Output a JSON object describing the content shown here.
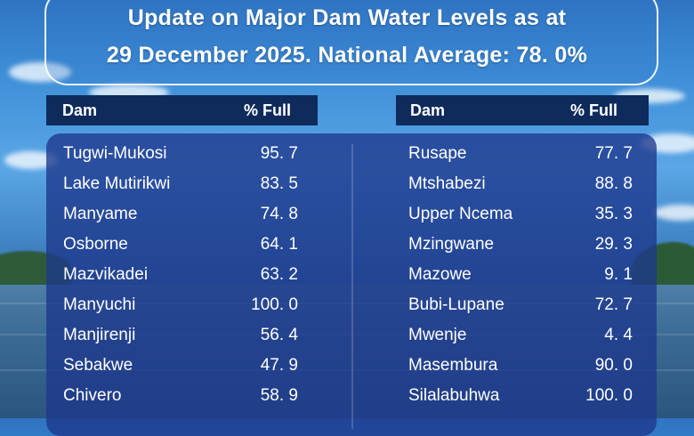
{
  "title": {
    "line1": "Update on Major Dam Water Levels as at",
    "line2": "29 December 2025. National Average: 78. 0%"
  },
  "table": {
    "col_dam": "Dam",
    "col_full": "% Full",
    "left": [
      {
        "dam": "Tugwi-Mukosi",
        "full": "95. 7"
      },
      {
        "dam": "Lake Mutirikwi",
        "full": "83. 5"
      },
      {
        "dam": "Manyame",
        "full": "74. 8"
      },
      {
        "dam": "Osborne",
        "full": "64. 1"
      },
      {
        "dam": "Mazvikadei",
        "full": "63. 2"
      },
      {
        "dam": "Manyuchi",
        "full": "100. 0"
      },
      {
        "dam": "Manjirenji",
        "full": "56. 4"
      },
      {
        "dam": "Sebakwe",
        "full": "47. 9"
      },
      {
        "dam": "Chivero",
        "full": "58. 9"
      }
    ],
    "right": [
      {
        "dam": "Rusape",
        "full": "77. 7"
      },
      {
        "dam": "Mtshabezi",
        "full": "88. 8"
      },
      {
        "dam": "Upper Ncema",
        "full": "35. 3"
      },
      {
        "dam": "Mzingwane",
        "full": "29. 3"
      },
      {
        "dam": "Mazowe",
        "full": "9. 1"
      },
      {
        "dam": "Bubi-Lupane",
        "full": "72. 7"
      },
      {
        "dam": "Mwenje",
        "full": "4. 4"
      },
      {
        "dam": "Masembura",
        "full": "90. 0"
      },
      {
        "dam": "Silalabuhwa",
        "full": "100. 0"
      }
    ]
  }
}
